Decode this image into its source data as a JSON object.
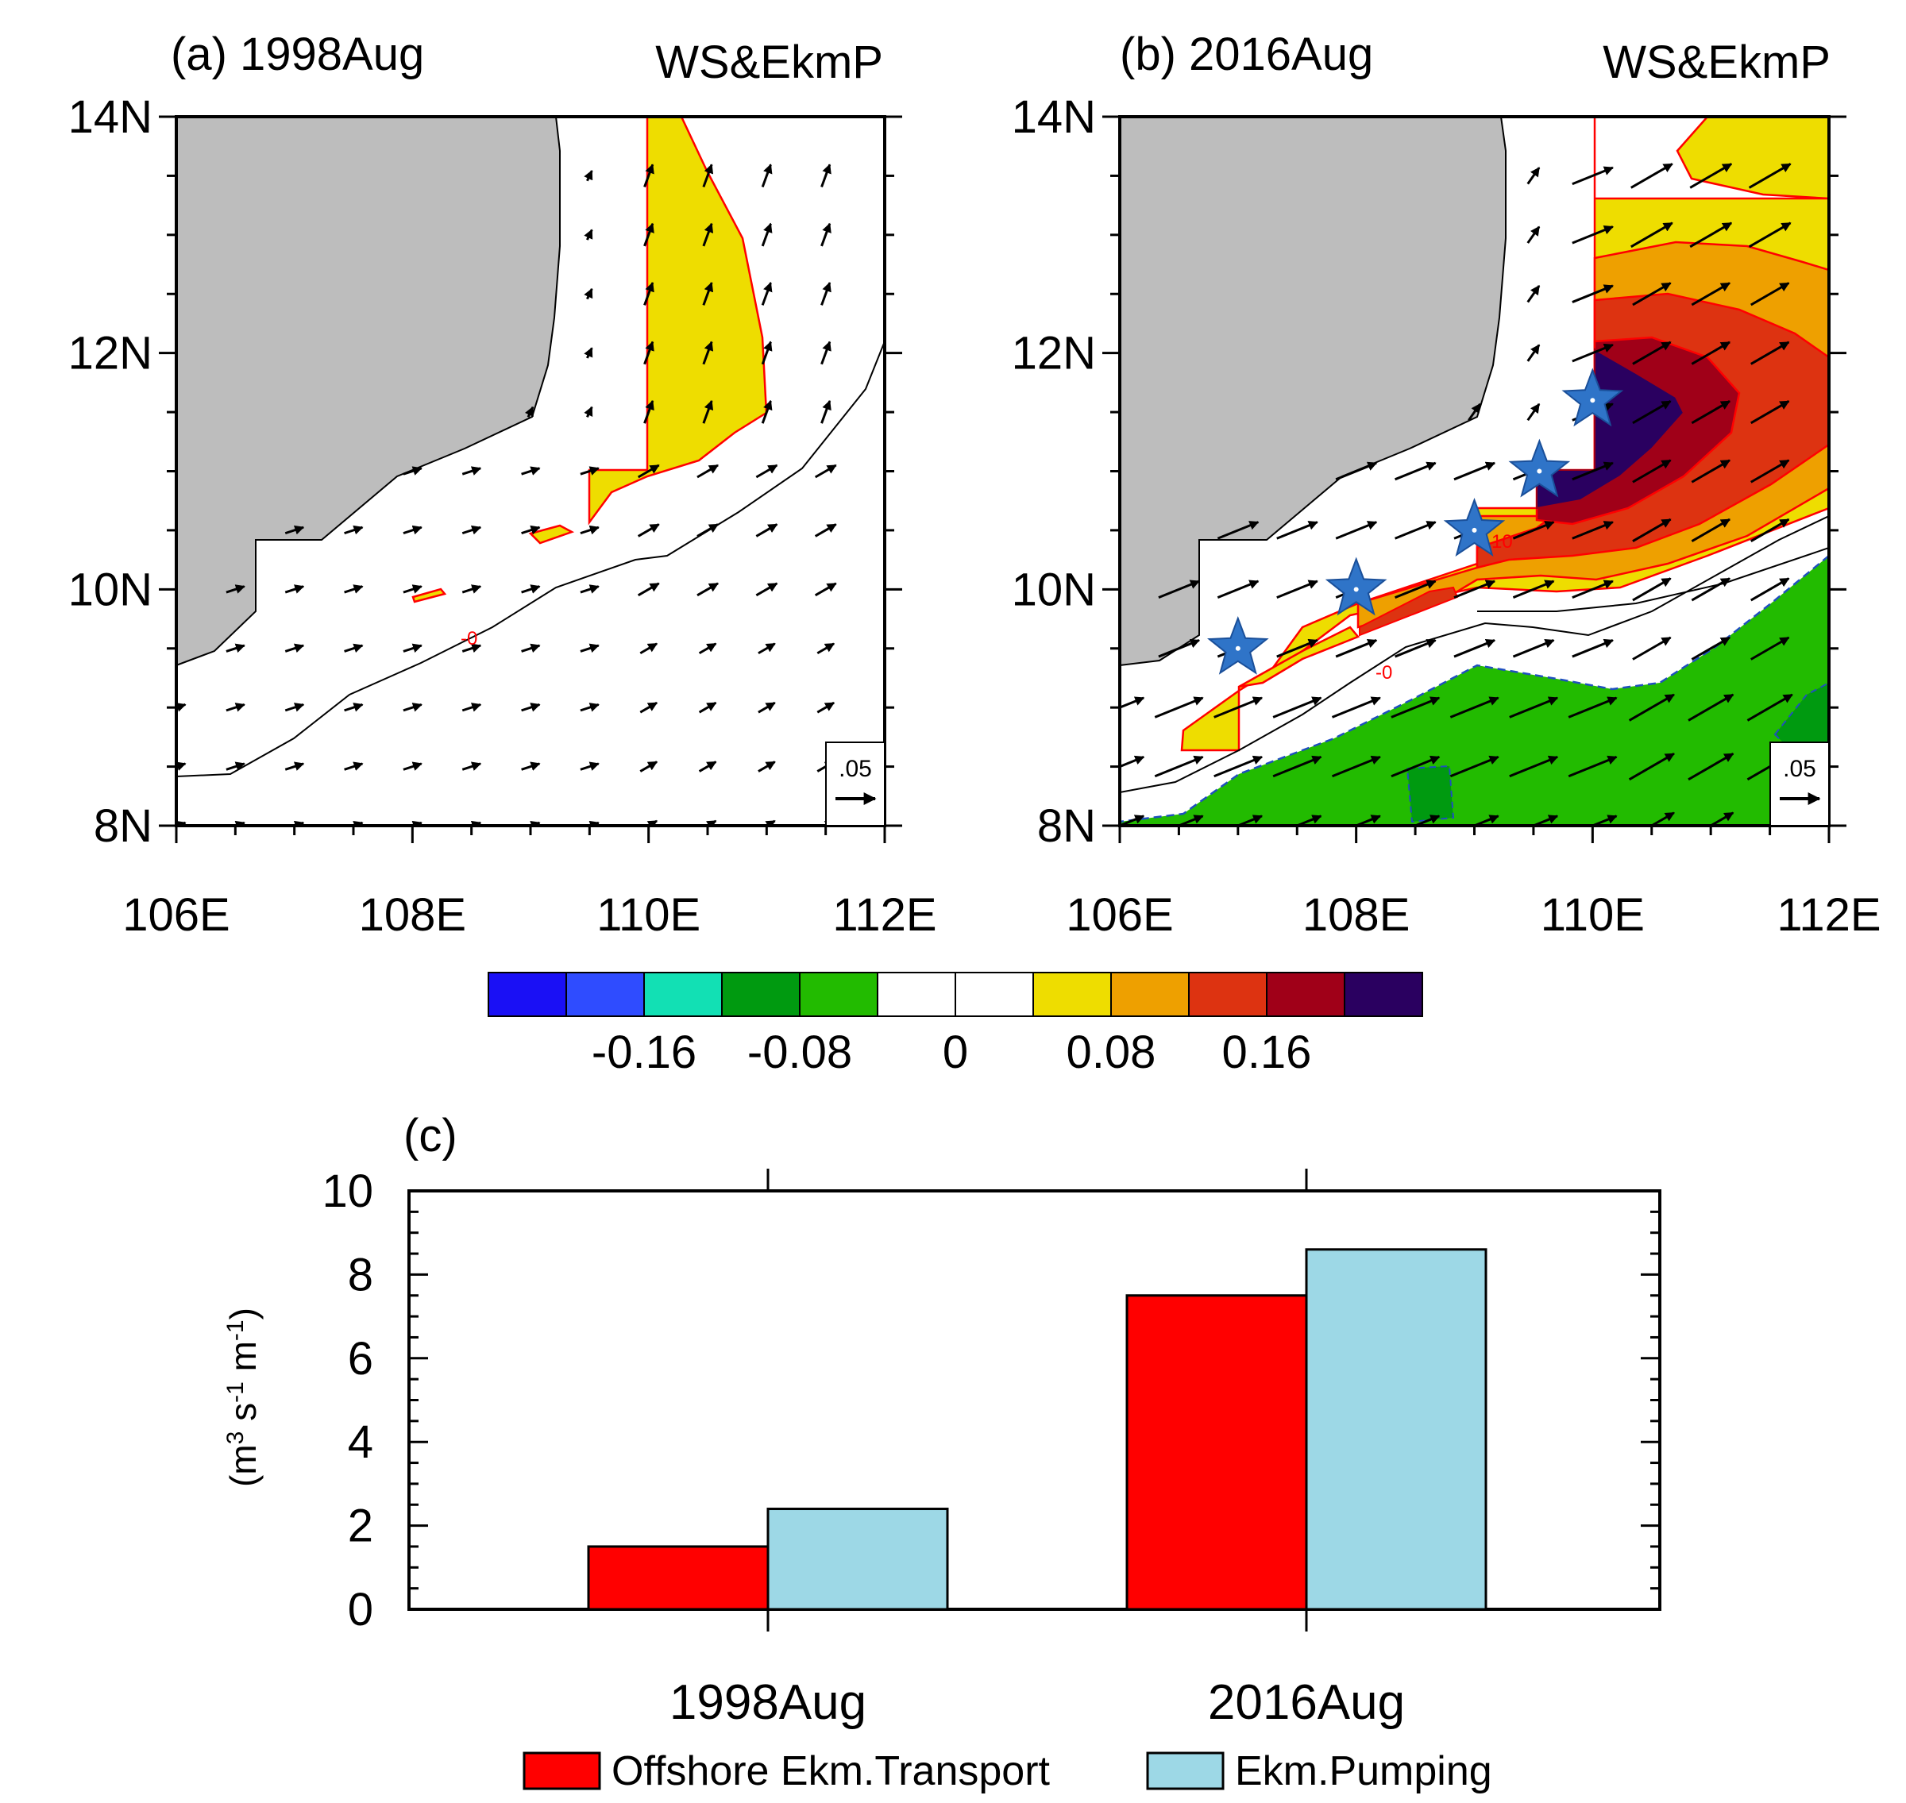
{
  "colors": {
    "land": "#bdbdbd",
    "transport": "#ff0000",
    "pumping": "#9dd8e6",
    "contour_pos": "#ff0000",
    "contour_neg": "#1f4fbf",
    "star": "#2f74c8"
  },
  "maps": {
    "panel_a": {
      "title": "(a) 1998Aug",
      "label": "WS&EkmP",
      "ref_vector": ".05",
      "contour_label": "-0"
    },
    "panel_b": {
      "title": "(b) 2016Aug",
      "label": "WS&EkmP",
      "ref_vector": ".05",
      "contour_label_1": "10",
      "contour_label_2": "-0",
      "stars": [
        {
          "lon": 107.0,
          "lat": 9.5
        },
        {
          "lon": 108.0,
          "lat": 10.0
        },
        {
          "lon": 109.0,
          "lat": 10.5
        },
        {
          "lon": 109.55,
          "lat": 11.0
        },
        {
          "lon": 110.0,
          "lat": 11.6
        }
      ]
    },
    "lon_ticks": [
      "106E",
      "108E",
      "110E",
      "112E"
    ],
    "lat_ticks": [
      "8N",
      "10N",
      "12N",
      "14N"
    ],
    "lon_range": [
      106,
      112
    ],
    "lat_range": [
      8,
      14
    ]
  },
  "colorbar": {
    "labels": [
      "-0.16",
      "-0.08",
      "0",
      "0.08",
      "0.16"
    ],
    "colors": [
      "#1a10f5",
      "#2f4cff",
      "#12e0b4",
      "#009a10",
      "#22bb00",
      "#ffffff",
      "#ffffff",
      "#eedd00",
      "#eea000",
      "#dd3311",
      "#a00018",
      "#2a0060"
    ]
  },
  "chart_data": {
    "type": "bar",
    "panel_label": "(c)",
    "categories": [
      "1998Aug",
      "2016Aug"
    ],
    "series": [
      {
        "name": "Offshore Ekm.Transport",
        "values": [
          1.5,
          7.5
        ]
      },
      {
        "name": "Ekm.Pumping",
        "values": [
          2.4,
          8.6
        ]
      }
    ],
    "ylabel": "(m3 s-1 m-1)",
    "ylabel_parts": {
      "m": "(m",
      "e1": "3",
      "s": " s",
      "e2": "-1",
      "m2": " m",
      "e3": "-1",
      "close": ")"
    },
    "ylim": [
      0,
      10
    ],
    "yticks": [
      "0",
      "2",
      "4",
      "6",
      "8",
      "10"
    ],
    "legend_position": "bottom"
  }
}
